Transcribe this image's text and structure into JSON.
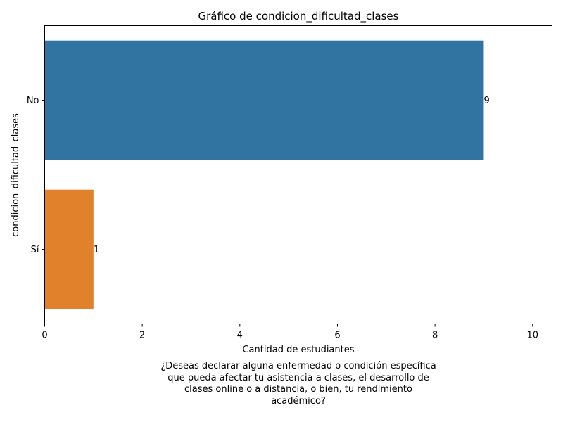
{
  "chart_data": {
    "type": "bar",
    "orientation": "horizontal",
    "title": "Gráfico de condicion_dificultad_clases",
    "xlabel": "Cantidad de estudiantes",
    "ylabel": "condicion_dificultad_clases",
    "categories": [
      "No",
      "Sí"
    ],
    "values": [
      9,
      1
    ],
    "data_labels": [
      "9",
      "1"
    ],
    "colors": [
      "#3274a1",
      "#e1812c"
    ],
    "xlim": [
      0,
      10.4
    ],
    "xticks": [
      0,
      2,
      4,
      6,
      8,
      10
    ],
    "grid": false
  },
  "caption": {
    "lines": [
      "¿Deseas declarar alguna enfermedad o condición específica",
      "que pueda afectar tu asistencia a clases, el desarrollo de",
      "clases online o a distancia, o bien, tu rendimiento",
      "académico?"
    ]
  }
}
